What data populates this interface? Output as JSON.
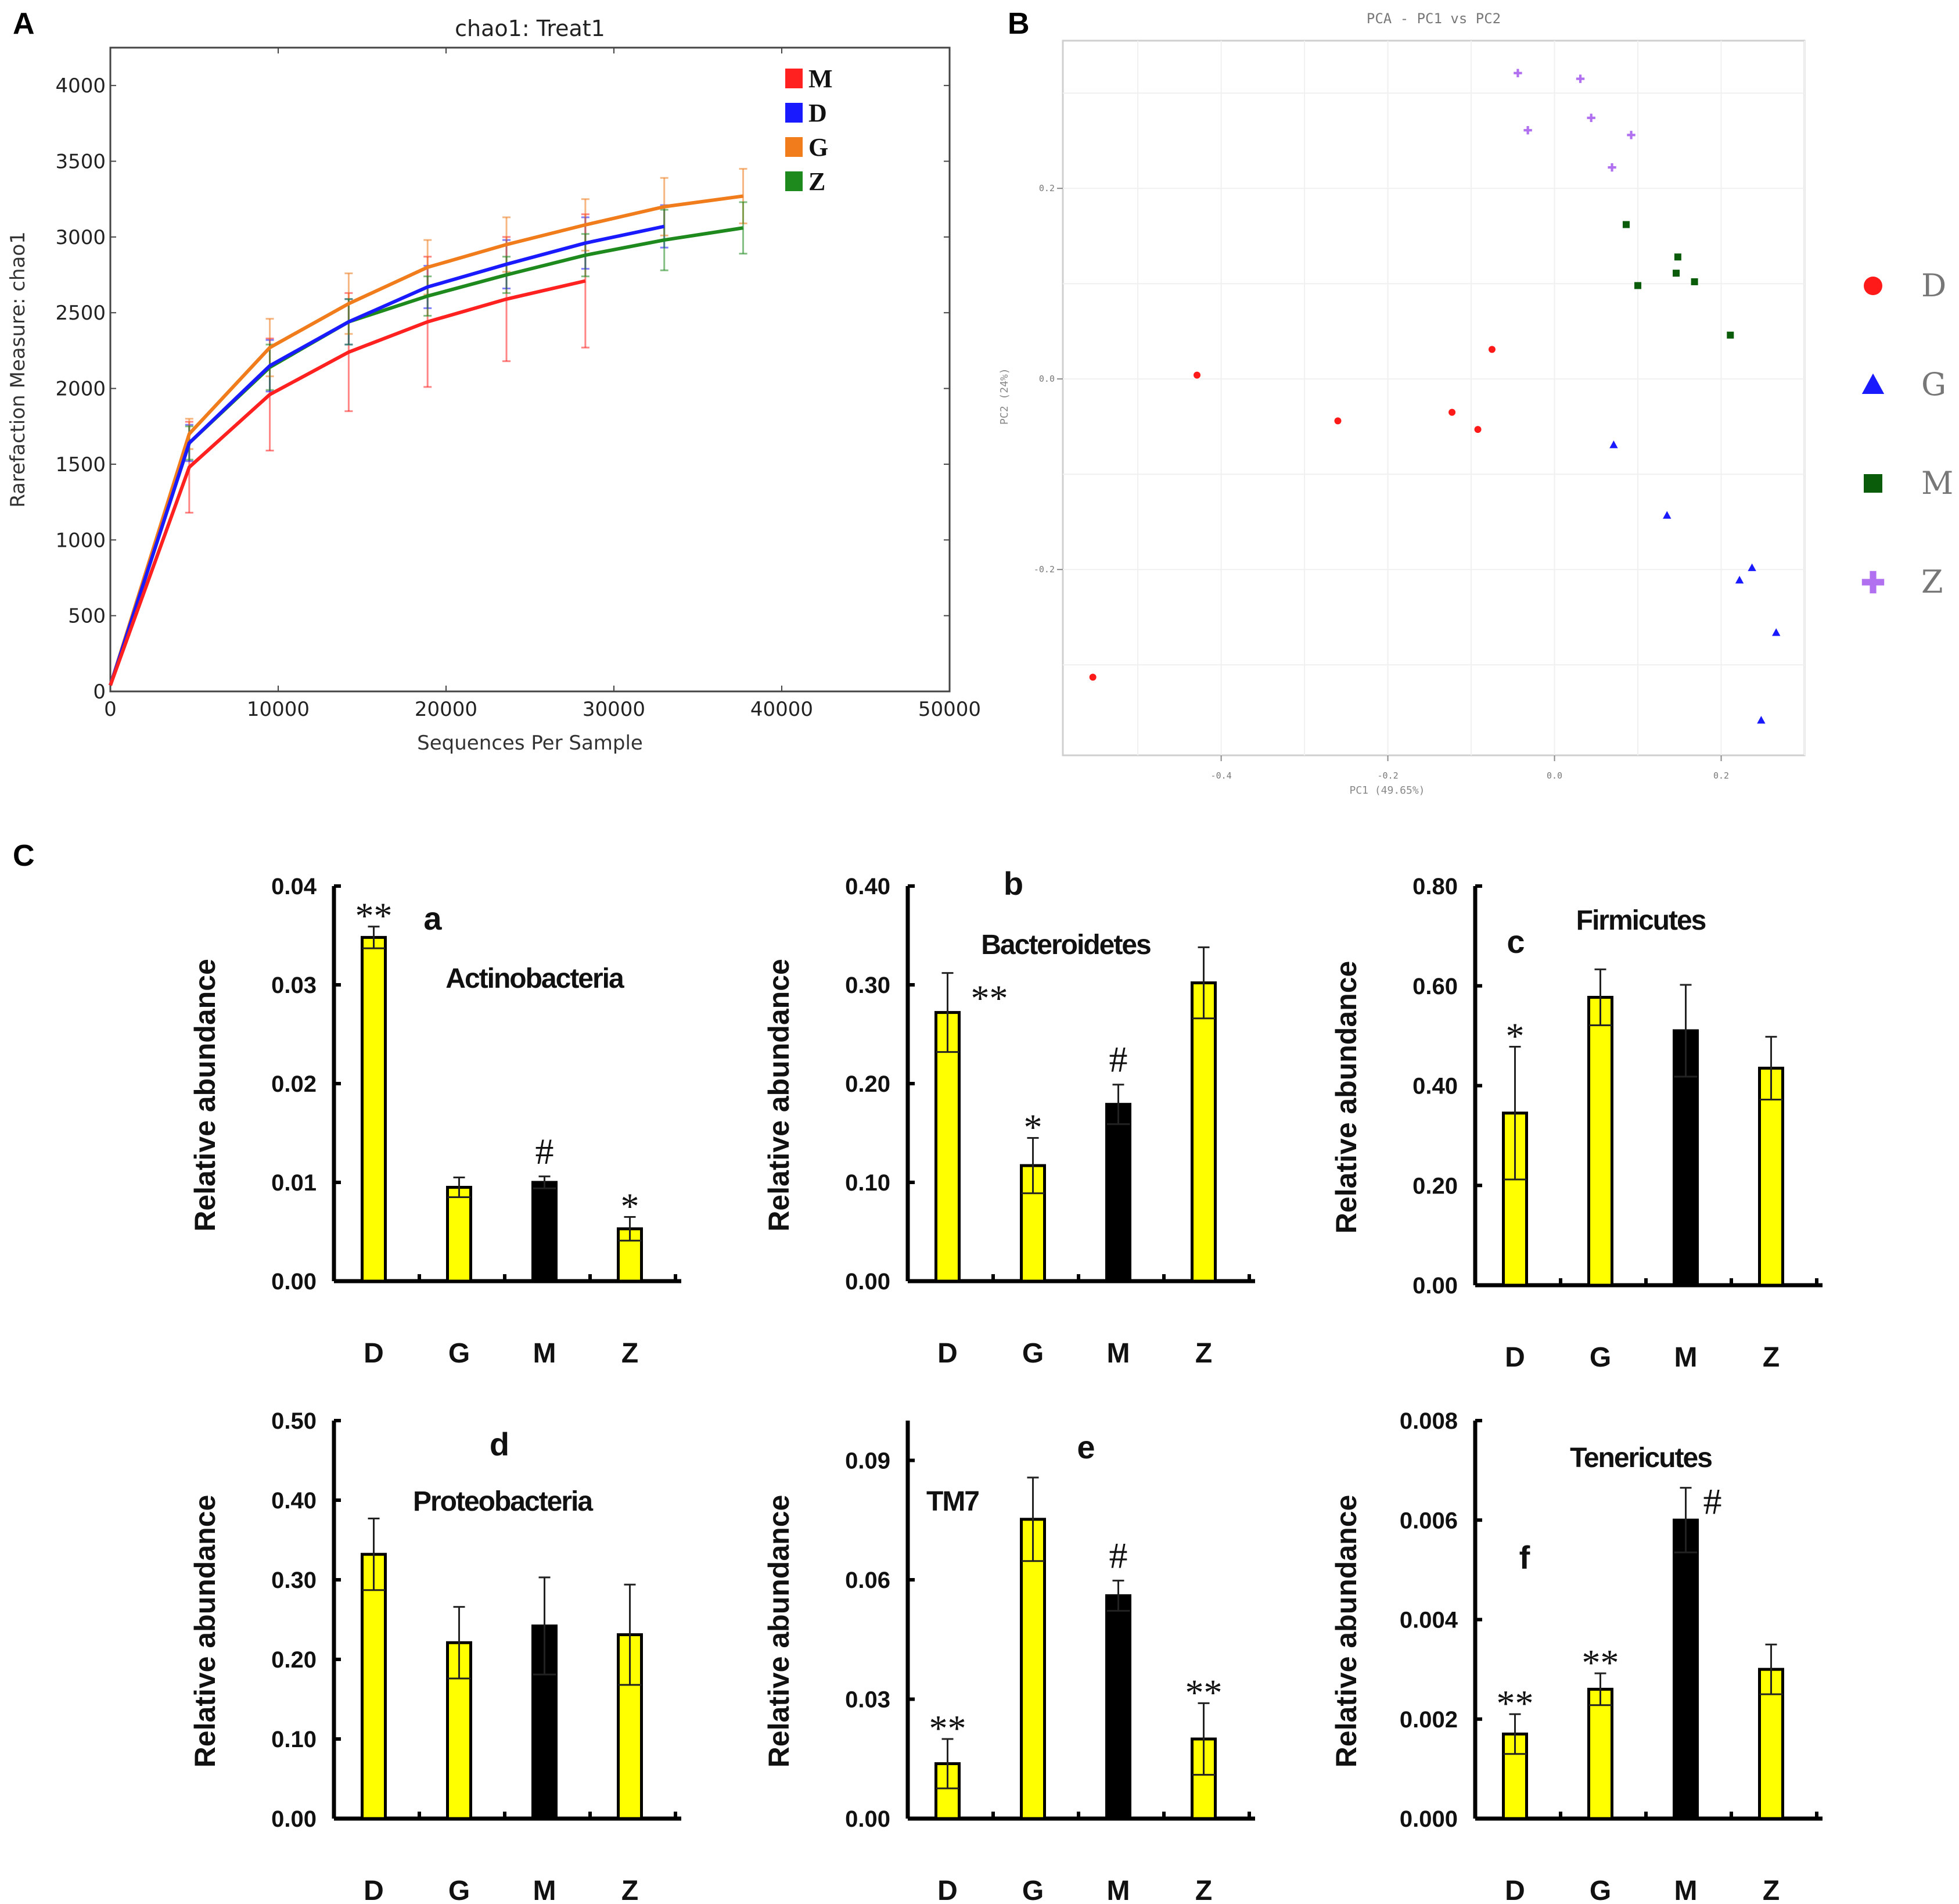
{
  "figure": {
    "panel_letters": [
      "A",
      "B",
      "C"
    ]
  },
  "chart_data": [
    {
      "id": "A",
      "type": "line",
      "title": "chao1: Treat1",
      "xlabel": "Sequences Per Sample",
      "ylabel": "Rarefaction Measure: chao1",
      "xlim": [
        0,
        50000
      ],
      "ylim": [
        0,
        4250
      ],
      "xticks": [
        0,
        10000,
        20000,
        30000,
        40000,
        50000
      ],
      "yticks": [
        0,
        500,
        1000,
        1500,
        2000,
        2500,
        3000,
        3500,
        4000
      ],
      "grid": false,
      "legend_position": "top-right",
      "series": [
        {
          "name": "M",
          "color": "#ff2020",
          "x": [
            0,
            4700,
            9500,
            14200,
            18900,
            23600,
            28300
          ],
          "y": [
            40,
            1480,
            1960,
            2240,
            2440,
            2590,
            2710
          ],
          "err": [
            0,
            300,
            370,
            390,
            430,
            410,
            440
          ]
        },
        {
          "name": "D",
          "color": "#1a1aff",
          "x": [
            0,
            4700,
            9500,
            14200,
            18900,
            23600,
            28300,
            33000
          ],
          "y": [
            40,
            1640,
            2150,
            2440,
            2670,
            2820,
            2960,
            3070
          ],
          "err": [
            0,
            120,
            170,
            150,
            140,
            160,
            170,
            140
          ]
        },
        {
          "name": "G",
          "color": "#f07c1c",
          "x": [
            0,
            4700,
            9500,
            14200,
            18900,
            23600,
            28300,
            33000,
            37700
          ],
          "y": [
            40,
            1700,
            2270,
            2560,
            2800,
            2950,
            3080,
            3200,
            3270
          ],
          "err": [
            0,
            100,
            190,
            200,
            180,
            180,
            170,
            190,
            180
          ]
        },
        {
          "name": "Z",
          "color": "#1e8a1e",
          "x": [
            0,
            4700,
            9500,
            14200,
            18900,
            23600,
            28300,
            33000,
            37700
          ],
          "y": [
            40,
            1640,
            2140,
            2440,
            2610,
            2750,
            2880,
            2980,
            3060
          ],
          "err": [
            0,
            110,
            150,
            150,
            130,
            120,
            140,
            200,
            170
          ]
        }
      ]
    },
    {
      "id": "B",
      "type": "scatter",
      "title": "PCA - PC1 vs PC2",
      "xlabel": "PC1 (49.65%)",
      "ylabel": "PC2 (24%)",
      "xlim": [
        -0.59,
        0.3
      ],
      "ylim": [
        -0.395,
        0.355
      ],
      "xticks": [
        -0.4,
        -0.2,
        0.0,
        0.2
      ],
      "xtick_labels": [
        "-0.4",
        "-0.2",
        "0.0",
        "0.2"
      ],
      "yticks": [
        -0.2,
        0.0,
        0.2
      ],
      "ytick_labels": [
        "-0.2",
        "0.0",
        "0.2"
      ],
      "grid": true,
      "legend_position": "right",
      "series": [
        {
          "name": "D",
          "color": "#ff1a1a",
          "marker": "circle",
          "points": [
            [
              -0.429,
              0.004
            ],
            [
              -0.075,
              0.031
            ],
            [
              -0.26,
              -0.044
            ],
            [
              -0.123,
              -0.035
            ],
            [
              -0.092,
              -0.053
            ],
            [
              -0.554,
              -0.313
            ]
          ]
        },
        {
          "name": "G",
          "color": "#1a1aff",
          "marker": "triangle",
          "points": [
            [
              0.071,
              -0.069
            ],
            [
              0.135,
              -0.143
            ],
            [
              0.237,
              -0.198
            ],
            [
              0.222,
              -0.211
            ],
            [
              0.266,
              -0.266
            ],
            [
              0.248,
              -0.358
            ]
          ]
        },
        {
          "name": "M",
          "color": "#0a5c0a",
          "marker": "square",
          "points": [
            [
              0.086,
              0.162
            ],
            [
              0.148,
              0.128
            ],
            [
              0.146,
              0.111
            ],
            [
              0.168,
              0.102
            ],
            [
              0.1,
              0.098
            ],
            [
              0.211,
              0.046
            ]
          ]
        },
        {
          "name": "Z",
          "color": "#b070f0",
          "marker": "plus",
          "points": [
            [
              -0.044,
              0.321
            ],
            [
              0.031,
              0.315
            ],
            [
              0.044,
              0.274
            ],
            [
              -0.032,
              0.261
            ],
            [
              0.092,
              0.256
            ],
            [
              0.069,
              0.222
            ]
          ]
        }
      ]
    },
    {
      "id": "C-a",
      "type": "bar",
      "letter": "a",
      "title": "Actinobacteria",
      "ylabel": "Relative abundance",
      "categories": [
        "D",
        "G",
        "M",
        "Z"
      ],
      "ylim": [
        0,
        0.04
      ],
      "yticks": [
        "0.00",
        "0.01",
        "0.02",
        "0.03",
        "0.04"
      ],
      "values": [
        0.0348,
        0.0095,
        0.01,
        0.0053
      ],
      "errors": [
        0.0011,
        0.001,
        0.0006,
        0.0012
      ],
      "bar_colors": [
        "#ffff00",
        "#ffff00",
        "#000000",
        "#ffff00"
      ],
      "significance": [
        "**",
        "",
        "#",
        "*"
      ]
    },
    {
      "id": "C-b",
      "type": "bar",
      "letter": "b",
      "title": "Bacteroidetes",
      "ylabel": "Relative abundance",
      "categories": [
        "D",
        "G",
        "M",
        "Z"
      ],
      "ylim": [
        0,
        0.4
      ],
      "yticks": [
        "0.00",
        "0.10",
        "0.20",
        "0.30",
        "0.40"
      ],
      "values": [
        0.272,
        0.117,
        0.179,
        0.302
      ],
      "errors": [
        0.04,
        0.028,
        0.02,
        0.036
      ],
      "bar_colors": [
        "#ffff00",
        "#ffff00",
        "#000000",
        "#ffff00"
      ],
      "significance": [
        "**",
        "*",
        "#",
        ""
      ]
    },
    {
      "id": "C-c",
      "type": "bar",
      "letter": "c",
      "title": "Firmicutes",
      "ylabel": "Relative abundance",
      "categories": [
        "D",
        "G",
        "M",
        "Z"
      ],
      "ylim": [
        0,
        0.8
      ],
      "yticks": [
        "0.00",
        "0.20",
        "0.40",
        "0.60",
        "0.80"
      ],
      "values": [
        0.345,
        0.577,
        0.51,
        0.435
      ],
      "errors": [
        0.133,
        0.056,
        0.092,
        0.063
      ],
      "bar_colors": [
        "#ffff00",
        "#ffff00",
        "#000000",
        "#ffff00"
      ],
      "significance": [
        "*",
        "",
        "",
        ""
      ]
    },
    {
      "id": "C-d",
      "type": "bar",
      "letter": "d",
      "title": "Proteobacteria",
      "ylabel": "Relative abundance",
      "categories": [
        "D",
        "G",
        "M",
        "Z"
      ],
      "ylim": [
        0,
        0.5
      ],
      "yticks": [
        "0.00",
        "0.10",
        "0.20",
        "0.30",
        "0.40",
        "0.50"
      ],
      "values": [
        0.332,
        0.221,
        0.242,
        0.231
      ],
      "errors": [
        0.045,
        0.045,
        0.061,
        0.063
      ],
      "bar_colors": [
        "#ffff00",
        "#ffff00",
        "#000000",
        "#ffff00"
      ],
      "significance": [
        "",
        "",
        "",
        ""
      ]
    },
    {
      "id": "C-e",
      "type": "bar",
      "letter": "e",
      "title": "TM7",
      "ylabel": "Relative abundance",
      "categories": [
        "D",
        "G",
        "M",
        "Z"
      ],
      "ylim": [
        0,
        0.1
      ],
      "yticks": [
        "0.00",
        "0.03",
        "0.06",
        "0.09"
      ],
      "values": [
        0.0138,
        0.0752,
        0.056,
        0.02
      ],
      "errors": [
        0.0062,
        0.0105,
        0.0038,
        0.009
      ],
      "bar_colors": [
        "#ffff00",
        "#ffff00",
        "#000000",
        "#ffff00"
      ],
      "significance": [
        "**",
        "",
        "#",
        "**"
      ]
    },
    {
      "id": "C-f",
      "type": "bar",
      "letter": "f",
      "title": "Tenericutes",
      "ylabel": "Relative abundance",
      "categories": [
        "D",
        "G",
        "M",
        "Z"
      ],
      "ylim": [
        0,
        0.008
      ],
      "yticks": [
        "0.000",
        "0.002",
        "0.004",
        "0.006",
        "0.008"
      ],
      "values": [
        0.0017,
        0.0026,
        0.006,
        0.003
      ],
      "errors": [
        0.0004,
        0.00032,
        0.00065,
        0.0005
      ],
      "bar_colors": [
        "#ffff00",
        "#ffff00",
        "#000000",
        "#ffff00"
      ],
      "significance": [
        "**",
        "**",
        "#",
        ""
      ]
    }
  ]
}
